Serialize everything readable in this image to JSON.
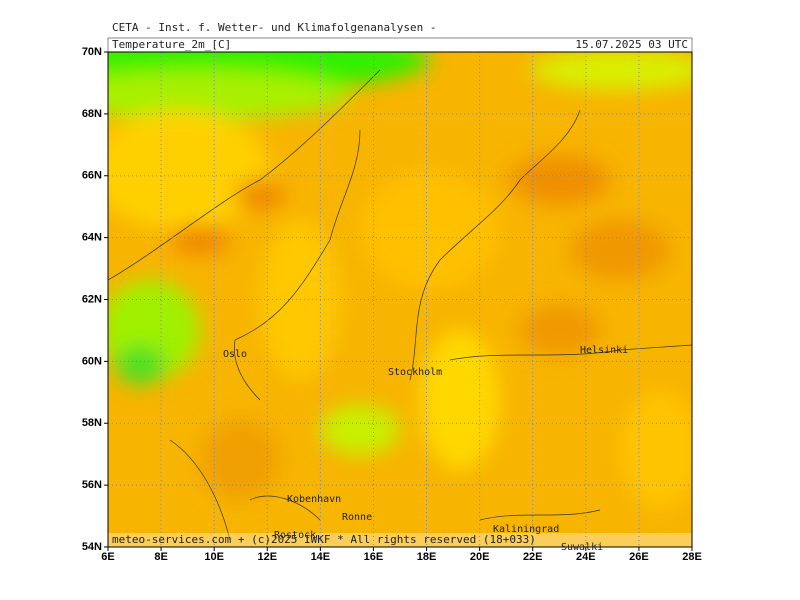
{
  "header": "CETA - Inst. f. Wetter- und Klimafolgenanalysen -",
  "title": "Temperature_2m_[C]",
  "date": "15.07.2025 03 UTC",
  "footer": "meteo-services.com + (c)2025 IWKF * All rights reserved (18+033)",
  "lat_ticks": [
    {
      "value": 70,
      "label": "70N"
    },
    {
      "value": 68,
      "label": "68N"
    },
    {
      "value": 66,
      "label": "66N"
    },
    {
      "value": 64,
      "label": "64N"
    },
    {
      "value": 62,
      "label": "62N"
    },
    {
      "value": 60,
      "label": "60N"
    },
    {
      "value": 58,
      "label": "58N"
    },
    {
      "value": 56,
      "label": "56N"
    },
    {
      "value": 54,
      "label": "54N"
    }
  ],
  "lon_ticks": [
    {
      "value": 6,
      "label": "6E"
    },
    {
      "value": 8,
      "label": "8E"
    },
    {
      "value": 10,
      "label": "10E"
    },
    {
      "value": 12,
      "label": "12E"
    },
    {
      "value": 14,
      "label": "14E"
    },
    {
      "value": 16,
      "label": "16E"
    },
    {
      "value": 18,
      "label": "18E"
    },
    {
      "value": 20,
      "label": "20E"
    },
    {
      "value": 22,
      "label": "22E"
    },
    {
      "value": 24,
      "label": "24E"
    },
    {
      "value": 26,
      "label": "26E"
    },
    {
      "value": 28,
      "label": "28E"
    }
  ],
  "cities": [
    "Oslo",
    "Stockholm",
    "Helsinki",
    "Kobenhavn",
    "Ronne",
    "Rostock",
    "Kaliningrad",
    "Suwalki"
  ]
}
